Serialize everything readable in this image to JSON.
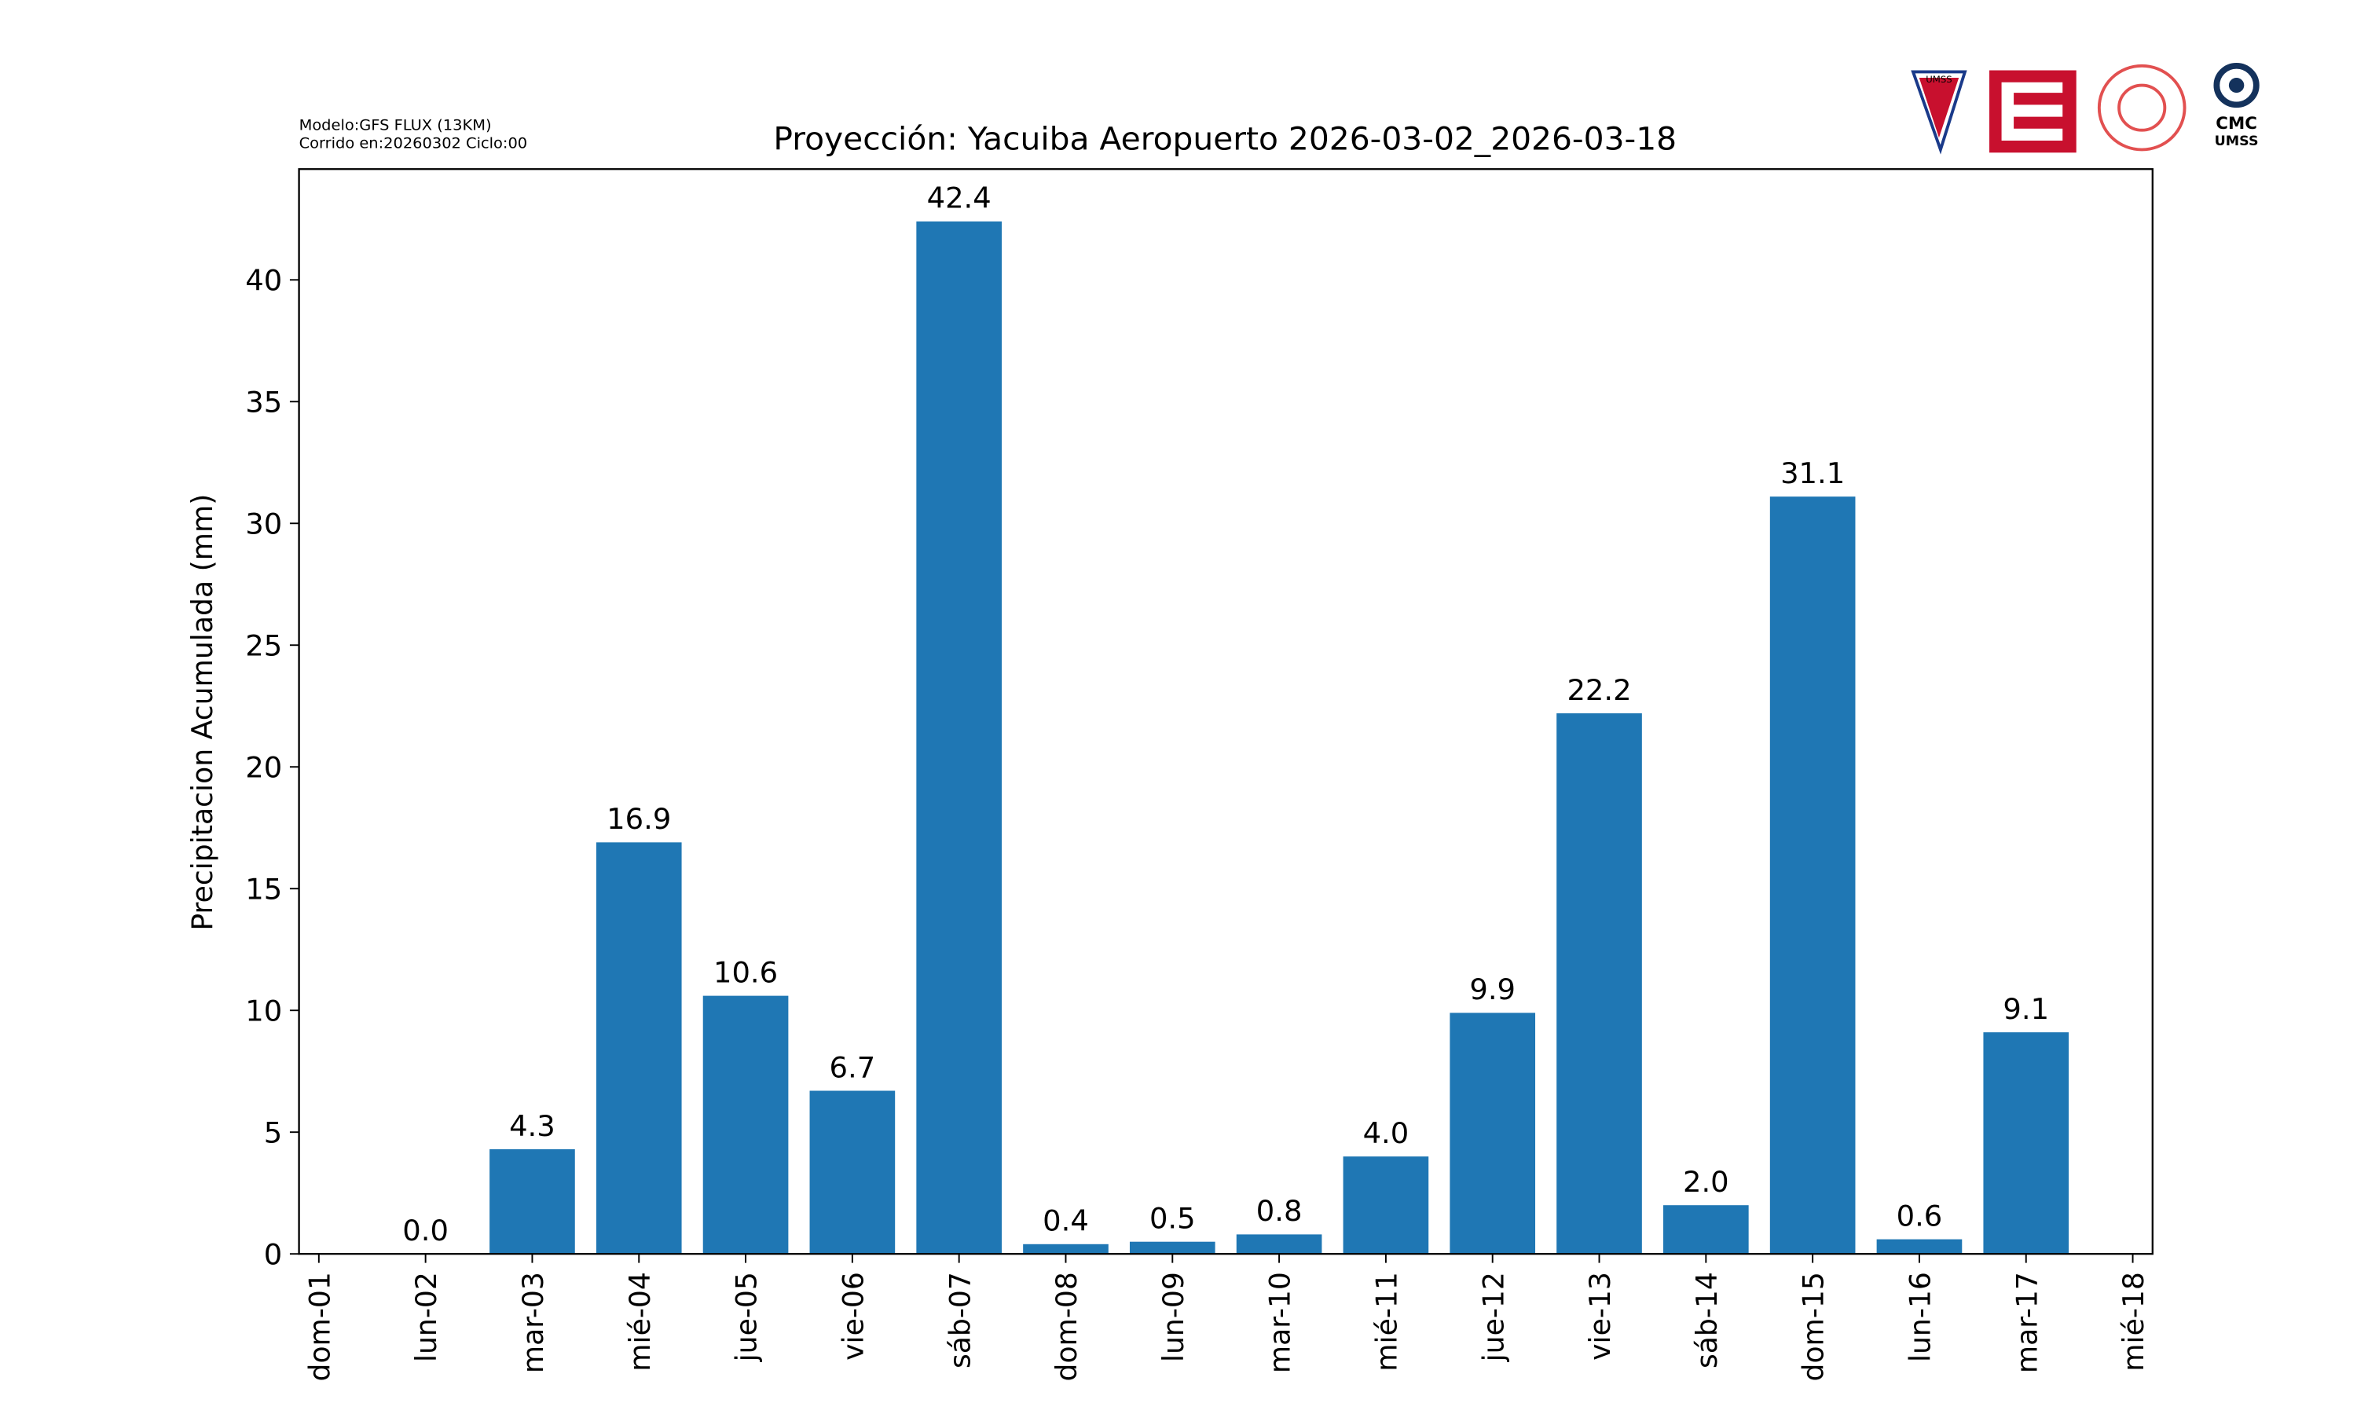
{
  "chart_data": {
    "type": "bar",
    "title": "Proyección: Yacuiba Aeropuerto  2026-03-02_2026-03-18",
    "subtitle_lines": [
      "Modelo:GFS FLUX (13KM)",
      "Corrido en:20260302 Ciclo:00"
    ],
    "y_label": "Precipitacion Acumulada (mm)",
    "categories": [
      "dom-01",
      "lun-02",
      "mar-03",
      "mié-04",
      "jue-05",
      "vie-06",
      "sáb-07",
      "dom-08",
      "lun-09",
      "mar-10",
      "mié-11",
      "jue-12",
      "vie-13",
      "sáb-14",
      "dom-15",
      "lun-16",
      "mar-17",
      "mié-18"
    ],
    "values": [
      null,
      0.0,
      4.3,
      16.9,
      10.6,
      6.7,
      42.4,
      0.4,
      0.5,
      0.8,
      4.0,
      9.9,
      22.2,
      2.0,
      31.1,
      0.6,
      9.1,
      null
    ],
    "value_labels": [
      null,
      "0.0",
      "4.3",
      "16.9",
      "10.6",
      "6.7",
      "42.4",
      "0.4",
      "0.5",
      "0.8",
      "4.0",
      "9.9",
      "22.2",
      "2.0",
      "31.1",
      "0.6",
      "9.1",
      null
    ],
    "color": "#1f77b4",
    "ylim": [
      0,
      44.55
    ],
    "yticks": [
      0,
      5,
      10,
      15,
      20,
      25,
      30,
      35,
      40
    ],
    "grid": false,
    "logo_texts": [
      "UMSS",
      "CMC",
      "UMSS"
    ]
  }
}
